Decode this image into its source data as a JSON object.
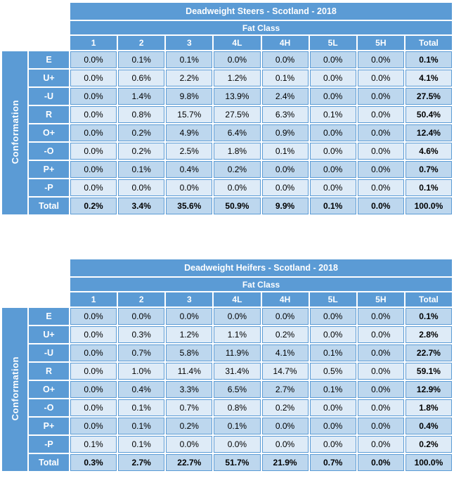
{
  "colors": {
    "header_blue": "#5B9BD5",
    "cell_border": "#5B9BD5",
    "row_tint_dark": "#BDD7EE",
    "row_tint_light": "#DEEBF7",
    "header_text": "#FFFFFF",
    "data_text": "#000000"
  },
  "chart_data": [
    {
      "type": "table",
      "title": "Deadweight Steers - Scotland - 2018",
      "group_header": "Fat Class",
      "row_group_label": "Conformation",
      "columns": [
        "1",
        "2",
        "3",
        "4L",
        "4H",
        "5L",
        "5H",
        "Total"
      ],
      "row_labels": [
        "E",
        "U+",
        "-U",
        "R",
        "O+",
        "-O",
        "P+",
        "-P",
        "Total"
      ],
      "rows": [
        [
          "0.0%",
          "0.1%",
          "0.1%",
          "0.0%",
          "0.0%",
          "0.0%",
          "0.0%",
          "0.1%"
        ],
        [
          "0.0%",
          "0.6%",
          "2.2%",
          "1.2%",
          "0.1%",
          "0.0%",
          "0.0%",
          "4.1%"
        ],
        [
          "0.0%",
          "1.4%",
          "9.8%",
          "13.9%",
          "2.4%",
          "0.0%",
          "0.0%",
          "27.5%"
        ],
        [
          "0.0%",
          "0.8%",
          "15.7%",
          "27.5%",
          "6.3%",
          "0.1%",
          "0.0%",
          "50.4%"
        ],
        [
          "0.0%",
          "0.2%",
          "4.9%",
          "6.4%",
          "0.9%",
          "0.0%",
          "0.0%",
          "12.4%"
        ],
        [
          "0.0%",
          "0.2%",
          "2.5%",
          "1.8%",
          "0.1%",
          "0.0%",
          "0.0%",
          "4.6%"
        ],
        [
          "0.0%",
          "0.1%",
          "0.4%",
          "0.2%",
          "0.0%",
          "0.0%",
          "0.0%",
          "0.7%"
        ],
        [
          "0.0%",
          "0.0%",
          "0.0%",
          "0.0%",
          "0.0%",
          "0.0%",
          "0.0%",
          "0.1%"
        ],
        [
          "0.2%",
          "3.4%",
          "35.6%",
          "50.9%",
          "9.9%",
          "0.1%",
          "0.0%",
          "100.0%"
        ]
      ]
    },
    {
      "type": "table",
      "title": "Deadweight Heifers - Scotland - 2018",
      "group_header": "Fat Class",
      "row_group_label": "Conformation",
      "columns": [
        "1",
        "2",
        "3",
        "4L",
        "4H",
        "5L",
        "5H",
        "Total"
      ],
      "row_labels": [
        "E",
        "U+",
        "-U",
        "R",
        "O+",
        "-O",
        "P+",
        "-P",
        "Total"
      ],
      "rows": [
        [
          "0.0%",
          "0.0%",
          "0.0%",
          "0.0%",
          "0.0%",
          "0.0%",
          "0.0%",
          "0.1%"
        ],
        [
          "0.0%",
          "0.3%",
          "1.2%",
          "1.1%",
          "0.2%",
          "0.0%",
          "0.0%",
          "2.8%"
        ],
        [
          "0.0%",
          "0.7%",
          "5.8%",
          "11.9%",
          "4.1%",
          "0.1%",
          "0.0%",
          "22.7%"
        ],
        [
          "0.0%",
          "1.0%",
          "11.4%",
          "31.4%",
          "14.7%",
          "0.5%",
          "0.0%",
          "59.1%"
        ],
        [
          "0.0%",
          "0.4%",
          "3.3%",
          "6.5%",
          "2.7%",
          "0.1%",
          "0.0%",
          "12.9%"
        ],
        [
          "0.0%",
          "0.1%",
          "0.7%",
          "0.8%",
          "0.2%",
          "0.0%",
          "0.0%",
          "1.8%"
        ],
        [
          "0.0%",
          "0.1%",
          "0.2%",
          "0.1%",
          "0.0%",
          "0.0%",
          "0.0%",
          "0.4%"
        ],
        [
          "0.1%",
          "0.1%",
          "0.0%",
          "0.0%",
          "0.0%",
          "0.0%",
          "0.0%",
          "0.2%"
        ],
        [
          "0.3%",
          "2.7%",
          "22.7%",
          "51.7%",
          "21.9%",
          "0.7%",
          "0.0%",
          "100.0%"
        ]
      ]
    }
  ]
}
